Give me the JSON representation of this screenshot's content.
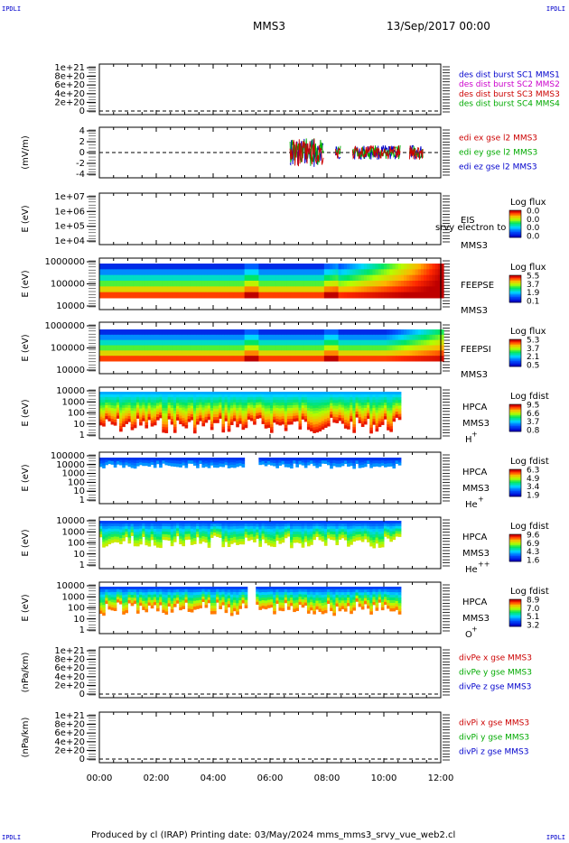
{
  "corner_label": "IPDLI",
  "header": {
    "spacecraft": "MMS3",
    "date": "13/Sep/2017 00:00"
  },
  "footer": {
    "text": "Produced by cl (IRAP)   Printing date: 03/May/2024   mms_mms3_srvy_vue_web2.cl"
  },
  "chart_data": {
    "type": "heatmap",
    "x_axis": {
      "range": [
        "00:00",
        "12:00"
      ],
      "tick_labels": [
        "00:00",
        "02:00",
        "04:00",
        "06:00",
        "08:00",
        "10:00",
        "12:00"
      ]
    },
    "panels": [
      {
        "id": "dist",
        "ylabel": "",
        "yticks": [
          "1e+21",
          "8e+20",
          "6e+20",
          "4e+20",
          "2e+20",
          "0"
        ],
        "legend": [
          {
            "text": "des dist burst SC1 MMS1",
            "color": "#0000cc"
          },
          {
            "text": "des dist burst SC2 MMS2",
            "color": "#cc00cc"
          },
          {
            "text": "des dist burst SC3 MMS3",
            "color": "#cc0000"
          },
          {
            "text": "des dist burst SC4 MMS4",
            "color": "#00aa00"
          }
        ]
      },
      {
        "id": "edi",
        "ylabel": "(mV/m)",
        "yticks": [
          "4",
          "2",
          "0",
          "-2",
          "-4"
        ],
        "legend": [
          {
            "text": "edi ex gse l2 MMS3",
            "color": "#cc0000"
          },
          {
            "text": "edi ey gse l2 MMS3",
            "color": "#00aa00"
          },
          {
            "text": "edi ez gse l2 MMS3",
            "color": "#0000cc"
          }
        ]
      },
      {
        "id": "eis",
        "ylabel": "E (eV)",
        "yticks": [
          "1e+07",
          "1e+06",
          "1e+05",
          "1e+04"
        ],
        "name": "EIS",
        "sub": "MMS3",
        "overlay": "srvy electron to",
        "cbar": {
          "title": "Log flux",
          "ticks": [
            "0.0",
            "0.0",
            "0.0",
            "0.0"
          ]
        }
      },
      {
        "id": "feepse",
        "ylabel": "E (eV)",
        "yticks": [
          "1000000",
          "100000",
          "10000"
        ],
        "name": "FEEPSE",
        "sub": "MMS3",
        "cbar": {
          "title": "Log flux",
          "ticks": [
            "5.5",
            "3.7",
            "1.9",
            "0.1"
          ]
        }
      },
      {
        "id": "feepsi",
        "ylabel": "E (eV)",
        "yticks": [
          "1000000",
          "100000",
          "10000"
        ],
        "name": "FEEPSI",
        "sub": "MMS3",
        "cbar": {
          "title": "Log flux",
          "ticks": [
            "5.3",
            "3.7",
            "2.1",
            "0.5"
          ]
        }
      },
      {
        "id": "hpca_h",
        "ylabel": "E (eV)",
        "yticks": [
          "10000",
          "1000",
          "100",
          "10",
          "1"
        ],
        "name": "HPCA",
        "sub": "MMS3",
        "species": "H",
        "charge": "+",
        "cbar": {
          "title": "Log fdist",
          "ticks": [
            "9.5",
            "6.6",
            "3.7",
            "0.8"
          ]
        }
      },
      {
        "id": "hpca_he",
        "ylabel": "E (eV)",
        "yticks": [
          "100000",
          "10000",
          "1000",
          "100",
          "10",
          "1"
        ],
        "name": "HPCA",
        "sub": "MMS3",
        "species": "He",
        "charge": "+",
        "cbar": {
          "title": "Log fdist",
          "ticks": [
            "6.3",
            "4.9",
            "3.4",
            "1.9"
          ]
        }
      },
      {
        "id": "hpca_hepp",
        "ylabel": "E (eV)",
        "yticks": [
          "10000",
          "1000",
          "100",
          "10",
          "1"
        ],
        "name": "HPCA",
        "sub": "MMS3",
        "species": "He",
        "charge": "++",
        "cbar": {
          "title": "Log fdist",
          "ticks": [
            "9.6",
            "6.9",
            "4.3",
            "1.6"
          ]
        }
      },
      {
        "id": "hpca_o",
        "ylabel": "E (eV)",
        "yticks": [
          "10000",
          "1000",
          "100",
          "10",
          "1"
        ],
        "name": "HPCA",
        "sub": "MMS3",
        "species": "O",
        "charge": "+",
        "cbar": {
          "title": "Log fdist",
          "ticks": [
            "8.9",
            "7.0",
            "5.1",
            "3.2"
          ]
        }
      },
      {
        "id": "divpe",
        "ylabel": "(nPa/km)",
        "yticks": [
          "1e+21",
          "8e+20",
          "6e+20",
          "4e+20",
          "2e+20",
          "0"
        ],
        "legend": [
          {
            "text": "divPe x gse MMS3",
            "color": "#cc0000"
          },
          {
            "text": "divPe y gse MMS3",
            "color": "#00aa00"
          },
          {
            "text": "divPe z gse MMS3",
            "color": "#0000cc"
          }
        ]
      },
      {
        "id": "divpi",
        "ylabel": "(nPa/km)",
        "yticks": [
          "1e+21",
          "8e+20",
          "6e+20",
          "4e+20",
          "2e+20",
          "0"
        ],
        "legend": [
          {
            "text": "divPi x gse MMS3",
            "color": "#cc0000"
          },
          {
            "text": "divPi y gse MMS3",
            "color": "#00aa00"
          },
          {
            "text": "divPi z gse MMS3",
            "color": "#0000cc"
          }
        ]
      }
    ]
  }
}
